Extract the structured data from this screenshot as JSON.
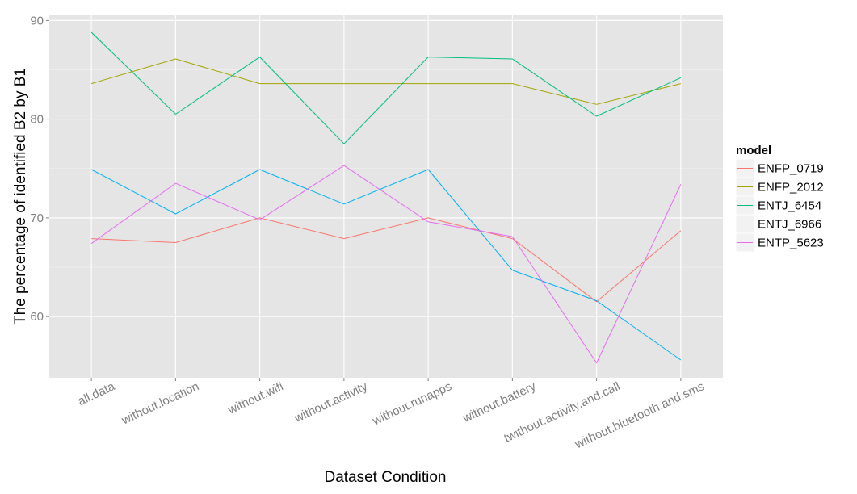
{
  "chart_data": {
    "type": "line",
    "title": "",
    "xlabel": "Dataset Condition",
    "ylabel": "The percentage of identified B2 by B1",
    "categories": [
      "all.data",
      "without.location",
      "without.wifi",
      "without.activity",
      "without.runapps",
      "without.battery",
      "twithout.activity.and.call",
      "without.bluetooth.and.sms"
    ],
    "y_ticks": [
      60,
      70,
      80,
      90
    ],
    "ylim": [
      53.8,
      90.6
    ],
    "grid": true,
    "legend": {
      "title": "model",
      "position": "right"
    },
    "series": [
      {
        "name": "ENFP_0719",
        "color": "#F8766D",
        "values": [
          67.9,
          67.5,
          70.0,
          67.9,
          70.0,
          67.9,
          61.5,
          68.7
        ]
      },
      {
        "name": "ENFP_2012",
        "color": "#A3A500",
        "values": [
          83.6,
          86.1,
          83.6,
          83.6,
          83.6,
          83.6,
          81.5,
          83.6
        ]
      },
      {
        "name": "ENTJ_6454",
        "color": "#00BF7D",
        "values": [
          88.8,
          80.5,
          86.3,
          77.5,
          86.3,
          86.1,
          80.3,
          84.2
        ]
      },
      {
        "name": "ENTJ_6966",
        "color": "#00B0F6",
        "values": [
          74.9,
          70.4,
          74.9,
          71.4,
          74.9,
          64.7,
          61.6,
          55.6
        ]
      },
      {
        "name": "ENTP_5623",
        "color": "#E76BF3",
        "values": [
          67.4,
          73.5,
          69.8,
          75.3,
          69.6,
          68.1,
          55.3,
          73.4
        ]
      }
    ]
  }
}
